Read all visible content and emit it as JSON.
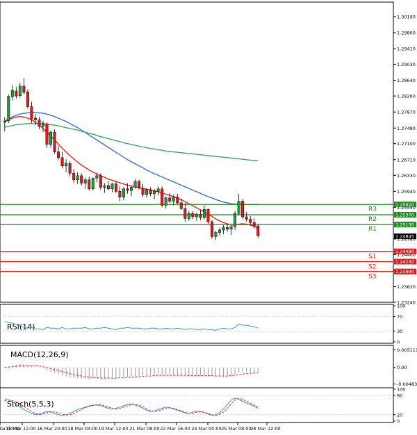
{
  "chart_data": [
    {
      "type": "candlestick",
      "title": "",
      "ylim": [
        1.2324,
        1.3038
      ],
      "y_ticks": [
        "1.30190",
        "1.29800",
        "1.29410",
        "1.29030",
        "1.28640",
        "1.28260",
        "1.27870",
        "1.27480",
        "1.27100",
        "1.26710",
        "1.26330",
        "1.25940",
        "1.25550",
        "1.25170",
        "1.24780",
        "1.24400",
        "1.24010",
        "1.23620",
        "1.23240"
      ],
      "x_tick_labels": [
        "Mar 04:00",
        "15 Mar 12:00",
        "16 Mar 20:00",
        "18 Mar 04:00",
        "19 Mar 12:00",
        "21 Mar 08:00",
        "22 Mar 16:00",
        "24 Mar 00:00",
        "25 Mar 08:00",
        "28 Mar 12:00"
      ],
      "candles": [
        [
          1.2762,
          1.2775,
          1.274,
          1.2765
        ],
        [
          1.2766,
          1.283,
          1.276,
          1.2825
        ],
        [
          1.2824,
          1.2852,
          1.2815,
          1.284
        ],
        [
          1.2838,
          1.2848,
          1.282,
          1.2826
        ],
        [
          1.2827,
          1.2858,
          1.2822,
          1.285
        ],
        [
          1.285,
          1.287,
          1.283,
          1.2835
        ],
        [
          1.2836,
          1.2842,
          1.2795,
          1.28
        ],
        [
          1.28,
          1.2812,
          1.276,
          1.277
        ],
        [
          1.2772,
          1.2782,
          1.2755,
          1.2768
        ],
        [
          1.2768,
          1.2776,
          1.2745,
          1.2752
        ],
        [
          1.2752,
          1.2766,
          1.2738,
          1.276
        ],
        [
          1.2758,
          1.2762,
          1.27,
          1.2708
        ],
        [
          1.2708,
          1.2742,
          1.27,
          1.2738
        ],
        [
          1.2738,
          1.2745,
          1.2685,
          1.269
        ],
        [
          1.269,
          1.2705,
          1.267,
          1.2676
        ],
        [
          1.2676,
          1.269,
          1.265,
          1.2656
        ],
        [
          1.2656,
          1.2672,
          1.264,
          1.2662
        ],
        [
          1.2662,
          1.2668,
          1.263,
          1.2638
        ],
        [
          1.2638,
          1.2648,
          1.2615,
          1.2622
        ],
        [
          1.2622,
          1.264,
          1.2612,
          1.2632
        ],
        [
          1.2632,
          1.2638,
          1.2608,
          1.2614
        ],
        [
          1.2614,
          1.2628,
          1.26,
          1.2622
        ],
        [
          1.2622,
          1.263,
          1.2595,
          1.26
        ],
        [
          1.26,
          1.2628,
          1.2596,
          1.2626
        ],
        [
          1.2626,
          1.264,
          1.2616,
          1.2632
        ],
        [
          1.2632,
          1.2638,
          1.2598,
          1.2604
        ],
        [
          1.2604,
          1.2614,
          1.259,
          1.2608
        ],
        [
          1.2608,
          1.2618,
          1.2596,
          1.26
        ],
        [
          1.26,
          1.2615,
          1.2592,
          1.2612
        ],
        [
          1.2612,
          1.2618,
          1.259,
          1.2594
        ],
        [
          1.2594,
          1.2606,
          1.257,
          1.258
        ],
        [
          1.258,
          1.2604,
          1.2572,
          1.26
        ],
        [
          1.26,
          1.2614,
          1.2588,
          1.2596
        ],
        [
          1.2596,
          1.2606,
          1.2582,
          1.2604
        ],
        [
          1.2604,
          1.2624,
          1.26,
          1.2618
        ],
        [
          1.2618,
          1.2622,
          1.2598,
          1.2602
        ],
        [
          1.2602,
          1.2612,
          1.258,
          1.2586
        ],
        [
          1.2586,
          1.2602,
          1.2578,
          1.2598
        ],
        [
          1.2598,
          1.2604,
          1.2582,
          1.2588
        ],
        [
          1.2588,
          1.26,
          1.2575,
          1.2594
        ],
        [
          1.2594,
          1.2606,
          1.2584,
          1.26
        ],
        [
          1.26,
          1.2606,
          1.2555,
          1.256
        ],
        [
          1.256,
          1.2582,
          1.2552,
          1.2578
        ],
        [
          1.2578,
          1.259,
          1.2566,
          1.257
        ],
        [
          1.257,
          1.2586,
          1.256,
          1.258
        ],
        [
          1.258,
          1.2588,
          1.2562,
          1.2566
        ],
        [
          1.2566,
          1.2576,
          1.2548,
          1.2552
        ],
        [
          1.2552,
          1.2566,
          1.252,
          1.2528
        ],
        [
          1.2528,
          1.2546,
          1.2522,
          1.254
        ],
        [
          1.254,
          1.2546,
          1.2526,
          1.2532
        ],
        [
          1.2532,
          1.2542,
          1.2522,
          1.2538
        ],
        [
          1.2538,
          1.2548,
          1.2524,
          1.253
        ],
        [
          1.253,
          1.256,
          1.2526,
          1.255
        ],
        [
          1.255,
          1.2552,
          1.2515,
          1.252
        ],
        [
          1.252,
          1.2524,
          1.2478,
          1.2484
        ],
        [
          1.2484,
          1.2498,
          1.2476,
          1.2494
        ],
        [
          1.2494,
          1.2506,
          1.2486,
          1.25
        ],
        [
          1.25,
          1.2512,
          1.249,
          1.2506
        ],
        [
          1.2506,
          1.2514,
          1.2496,
          1.2502
        ],
        [
          1.2502,
          1.2512,
          1.2488,
          1.2508
        ],
        [
          1.2508,
          1.2546,
          1.25,
          1.254
        ],
        [
          1.254,
          1.2588,
          1.2536,
          1.257
        ],
        [
          1.257,
          1.2576,
          1.2526,
          1.2532
        ],
        [
          1.2532,
          1.2544,
          1.252,
          1.2526
        ],
        [
          1.2526,
          1.2534,
          1.2512,
          1.2518
        ],
        [
          1.2518,
          1.2528,
          1.2504,
          1.251
        ],
        [
          1.251,
          1.2514,
          1.248,
          1.2486
        ]
      ],
      "moving_averages": [
        {
          "color": "#e8231e",
          "values": [
            1.2762,
            1.2768,
            1.2772,
            1.2775,
            1.2776,
            1.2775,
            1.2772,
            1.2768,
            1.2762,
            1.2755,
            1.2747,
            1.2738,
            1.2729,
            1.2719,
            1.2709,
            1.2699,
            1.269,
            1.2681,
            1.2673,
            1.2665,
            1.2658,
            1.2652,
            1.2646,
            1.2641,
            1.2636,
            1.2632,
            1.2628,
            1.2624,
            1.2621,
            1.2618,
            1.2615,
            1.2612,
            1.2609,
            1.2607,
            1.2605,
            1.2603,
            1.2601,
            1.2599,
            1.2597,
            1.2595,
            1.2593,
            1.259,
            1.2587,
            1.2584,
            1.2581,
            1.2578,
            1.2574,
            1.2569,
            1.2564,
            1.2559,
            1.2554,
            1.2549,
            1.2544,
            1.2539,
            1.2533,
            1.2527,
            1.2522,
            1.2518,
            1.2515,
            1.2512,
            1.2512,
            1.2514,
            1.2515,
            1.2514,
            1.2512,
            1.2509,
            1.2504
          ]
        },
        {
          "color": "#3b6fd4",
          "values": [
            1.2765,
            1.277,
            1.2775,
            1.2779,
            1.2782,
            1.2784,
            1.2785,
            1.2786,
            1.2786,
            1.2785,
            1.2784,
            1.2782,
            1.2779,
            1.2776,
            1.2772,
            1.2768,
            1.2764,
            1.2759,
            1.2754,
            1.2749,
            1.2743,
            1.2737,
            1.2731,
            1.2725,
            1.2719,
            1.2713,
            1.2707,
            1.2701,
            1.2695,
            1.2689,
            1.2683,
            1.2677,
            1.2671,
            1.2666,
            1.2661,
            1.2656,
            1.2651,
            1.2646,
            1.2641,
            1.2637,
            1.2633,
            1.2629,
            1.2625,
            1.2621,
            1.2617,
            1.2613,
            1.2609,
            1.2605,
            1.2601,
            1.2597,
            1.2593,
            1.2589,
            1.2585,
            1.2581,
            1.2578,
            1.2574,
            1.2571,
            1.2568,
            1.2566,
            1.2564,
            1.2563,
            1.2563,
            1.2562,
            1.2562,
            1.2562,
            1.2562,
            1.2562
          ]
        },
        {
          "color": "#3aa85a",
          "values": [
            1.275,
            1.2752,
            1.2754,
            1.2756,
            1.2757,
            1.2758,
            1.2759,
            1.2759,
            1.2759,
            1.2759,
            1.2758,
            1.2757,
            1.2756,
            1.2755,
            1.2753,
            1.2751,
            1.2749,
            1.2747,
            1.2745,
            1.2743,
            1.274,
            1.2738,
            1.2735,
            1.2733,
            1.273,
            1.2727,
            1.2725,
            1.2722,
            1.272,
            1.2717,
            1.2715,
            1.2712,
            1.271,
            1.2708,
            1.2706,
            1.2704,
            1.2702,
            1.27,
            1.2698,
            1.2697,
            1.2695,
            1.2694,
            1.2692,
            1.2691,
            1.269,
            1.2689,
            1.2688,
            1.2687,
            1.2686,
            1.2685,
            1.2684,
            1.2683,
            1.2682,
            1.2681,
            1.268,
            1.2679,
            1.2678,
            1.2677,
            1.2676,
            1.2675,
            1.2674,
            1.2673,
            1.2672,
            1.2671,
            1.267,
            1.2669,
            1.2668
          ]
        }
      ],
      "levels": [
        {
          "label": "R3",
          "value": 1.2562,
          "badge": "1.25620",
          "color": "#1e8c1e"
        },
        {
          "label": "R2",
          "value": 1.2537,
          "badge": "1.25370",
          "color": "#1e8c1e"
        },
        {
          "label": "R1",
          "value": 1.2513,
          "badge": "1.25130",
          "color": "#1e8c1e"
        },
        {
          "label": "S1",
          "value": 1.2448,
          "badge": "1.24480",
          "color": "#e01b1b"
        },
        {
          "label": "S2",
          "value": 1.2423,
          "badge": "1.24230",
          "color": "#e01b1b"
        },
        {
          "label": "S3",
          "value": 1.2399,
          "badge": "1.23990",
          "color": "#e01b1b"
        }
      ],
      "current_price": {
        "value": 1.24845,
        "label": "1.24845",
        "color": "#000000"
      }
    },
    {
      "type": "line",
      "indicator": "RSI(14)",
      "ylim": [
        0,
        100
      ],
      "y_ticks": [
        "100",
        "70",
        "30",
        "0"
      ],
      "series": [
        {
          "color": "#3b8fd4",
          "values": [
            56,
            54,
            52,
            48,
            46,
            40,
            38,
            40,
            36,
            36,
            34,
            40,
            38,
            38,
            36,
            40,
            36,
            36,
            38,
            38,
            38,
            40,
            36,
            36,
            38,
            38,
            40,
            38,
            36,
            34,
            38,
            38,
            40,
            38,
            38,
            38,
            36,
            36,
            38,
            38,
            36,
            36,
            38,
            36,
            36,
            38,
            36,
            34,
            36,
            36,
            34,
            34,
            36,
            34,
            34,
            32,
            36,
            38,
            36,
            36,
            40,
            50,
            46,
            46,
            44,
            42,
            38
          ]
        }
      ]
    },
    {
      "type": "bar",
      "indicator": "MACD(12,26,9)",
      "ylim": [
        -0.0055,
        0.006
      ],
      "y_ticks": [
        "0.005111",
        "0.00",
        "-0.004835"
      ],
      "histogram": [
        0.0002,
        0.0004,
        0.0006,
        0.0008,
        0.001,
        0.001,
        0.0008,
        0.0006,
        0.0003,
        0.0,
        -0.0003,
        -0.0008,
        -0.0012,
        -0.0016,
        -0.002,
        -0.0024,
        -0.0026,
        -0.0029,
        -0.0031,
        -0.0032,
        -0.0033,
        -0.0034,
        -0.0034,
        -0.0034,
        -0.0033,
        -0.0032,
        -0.0032,
        -0.0031,
        -0.003,
        -0.003,
        -0.003,
        -0.0029,
        -0.0028,
        -0.0027,
        -0.0026,
        -0.0025,
        -0.0024,
        -0.0023,
        -0.0022,
        -0.0022,
        -0.0021,
        -0.0022,
        -0.0022,
        -0.0022,
        -0.0022,
        -0.0022,
        -0.0023,
        -0.0024,
        -0.0024,
        -0.0024,
        -0.0024,
        -0.0024,
        -0.0023,
        -0.0024,
        -0.0025,
        -0.0026,
        -0.0026,
        -0.0026,
        -0.0025,
        -0.0024,
        -0.002,
        -0.0015,
        -0.0014,
        -0.0014,
        -0.0014,
        -0.0014,
        -0.0015
      ],
      "signal": {
        "color": "#e8231e",
        "values": [
          0.0,
          0.0001,
          0.0002,
          0.0003,
          0.0004,
          0.0005,
          0.0006,
          0.0006,
          0.0005,
          0.0004,
          0.0002,
          0.0,
          -0.0003,
          -0.0006,
          -0.0009,
          -0.0012,
          -0.0015,
          -0.0018,
          -0.0021,
          -0.0023,
          -0.0025,
          -0.0027,
          -0.0028,
          -0.0029,
          -0.003,
          -0.0031,
          -0.0031,
          -0.0031,
          -0.0031,
          -0.0031,
          -0.003,
          -0.003,
          -0.0029,
          -0.0029,
          -0.0028,
          -0.0027,
          -0.0026,
          -0.0025,
          -0.0025,
          -0.0024,
          -0.0023,
          -0.0023,
          -0.0023,
          -0.0023,
          -0.0023,
          -0.0023,
          -0.0023,
          -0.0023,
          -0.0024,
          -0.0024,
          -0.0024,
          -0.0024,
          -0.0024,
          -0.0024,
          -0.0024,
          -0.0025,
          -0.0025,
          -0.0025,
          -0.0025,
          -0.0024,
          -0.0023,
          -0.0021,
          -0.0019,
          -0.0018,
          -0.0017,
          -0.0016,
          -0.0016
        ]
      }
    },
    {
      "type": "line",
      "indicator": "Stoch(5,5,3)",
      "ylim": [
        0,
        100
      ],
      "y_ticks": [
        "100",
        "80",
        "20",
        "0"
      ],
      "series": [
        {
          "color": "#3b8fd4",
          "values": [
            70,
            66,
            60,
            52,
            44,
            36,
            30,
            24,
            20,
            22,
            26,
            30,
            28,
            24,
            20,
            18,
            20,
            24,
            30,
            36,
            40,
            44,
            48,
            50,
            50,
            48,
            44,
            40,
            38,
            40,
            44,
            48,
            52,
            54,
            50,
            46,
            40,
            34,
            30,
            32,
            36,
            40,
            44,
            42,
            38,
            34,
            30,
            26,
            24,
            28,
            32,
            30,
            26,
            22,
            18,
            20,
            26,
            38,
            52,
            66,
            72,
            68,
            62,
            56,
            52,
            46,
            40
          ]
        },
        {
          "color": "#e8231e",
          "values": [
            64,
            66,
            64,
            60,
            54,
            46,
            38,
            30,
            24,
            20,
            22,
            26,
            30,
            30,
            26,
            22,
            19,
            20,
            24,
            30,
            36,
            42,
            46,
            49,
            51,
            51,
            48,
            44,
            40,
            38,
            40,
            44,
            48,
            51,
            52,
            50,
            45,
            38,
            32,
            30,
            32,
            36,
            40,
            42,
            40,
            36,
            32,
            28,
            24,
            24,
            28,
            30,
            28,
            24,
            20,
            18,
            21,
            28,
            40,
            54,
            66,
            71,
            68,
            62,
            56,
            50,
            44
          ]
        }
      ]
    }
  ]
}
